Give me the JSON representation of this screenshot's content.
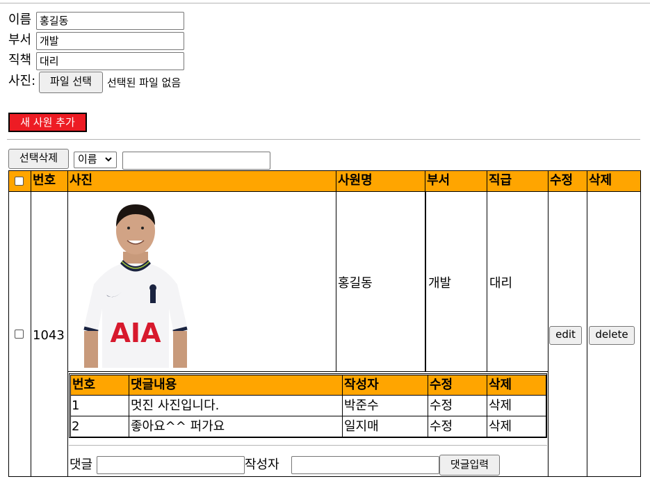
{
  "form": {
    "name_label": "이름",
    "name_value": "홍길동",
    "dept_label": "부서",
    "dept_value": "개발",
    "position_label": "직책",
    "position_value": "대리",
    "photo_label": "사진:",
    "file_button": "파일 선택",
    "file_status": "선택된 파일 없음",
    "add_button": "새 사원 추가"
  },
  "toolbar": {
    "delete_selected": "선택삭제",
    "search_field_selected": "이름",
    "search_value": ""
  },
  "table": {
    "headers": [
      "번호",
      "사진",
      "사원명",
      "부서",
      "직급",
      "수정",
      "삭제"
    ],
    "row": {
      "id": "1043",
      "name": "홍길동",
      "dept": "개발",
      "position": "대리",
      "edit": "edit",
      "delete": "delete"
    },
    "photo_text": "AIA"
  },
  "comments": {
    "headers": [
      "번호",
      "댓글내용",
      "작성자",
      "수정",
      "삭제"
    ],
    "rows": [
      {
        "no": "1",
        "content": "멋진 사진입니다.",
        "author": "박준수",
        "edit": "수정",
        "delete": "삭제"
      },
      {
        "no": "2",
        "content": "좋아요^^ 퍼가요",
        "author": "일지매",
        "edit": "수정",
        "delete": "삭제"
      }
    ],
    "comment_label": "댓글",
    "author_label": "작성자",
    "submit_button": "댓글입력"
  },
  "colors": {
    "header": "#ffa500",
    "add_button": "#ed1c24"
  }
}
